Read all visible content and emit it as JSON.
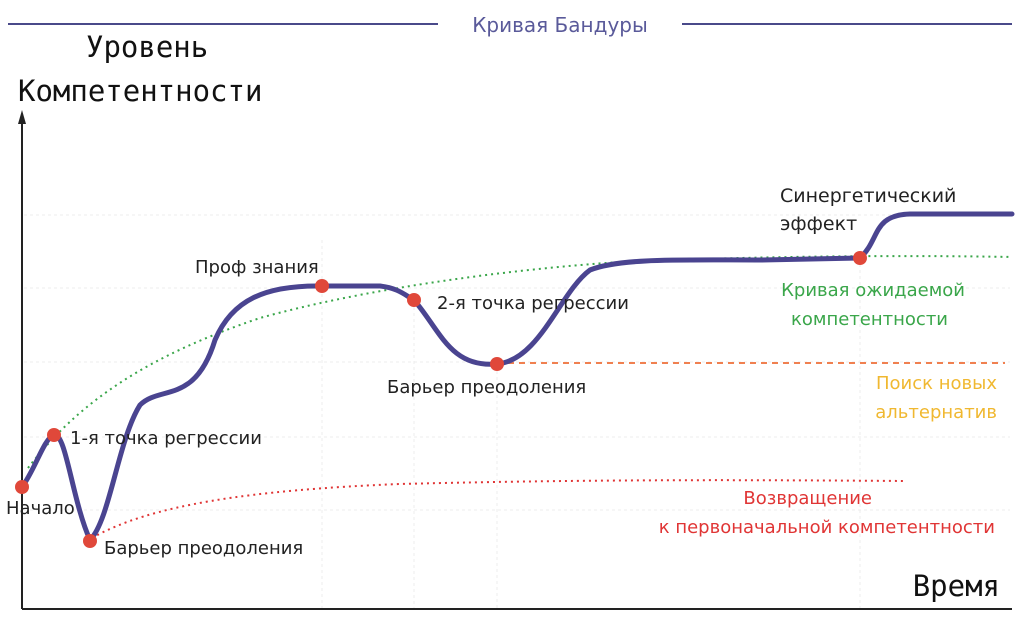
{
  "header": {
    "title": "Кривая Бандуры",
    "title_color": "#5a5a9a",
    "rule_color": "#4a4a8a"
  },
  "axes": {
    "y_label_line1": "Уровень",
    "y_label_line2": "Компетентности",
    "x_label": "Время"
  },
  "annotations": {
    "start": "Начало",
    "regression1": "1-я точка регрессии",
    "barrier1": "Барьер преодоления",
    "prof": "Проф знания",
    "regression2": "2-я точка регрессии",
    "barrier2": "Барьер преодоления",
    "synergy_line1": "Синергетический",
    "synergy_line2": "эффект"
  },
  "legend": {
    "expected_line1": "Кривая ожидаемой",
    "expected_line2": "компетентности",
    "search_line1": "Поиск новых",
    "search_line2": "альтернатив",
    "return_line1": "Возвращение",
    "return_line2": "к первоначальной компетентности"
  },
  "colors": {
    "curve": "#4a4490",
    "point": "#e0483a",
    "expected": "#3aa64a",
    "search": "#f08050",
    "search_text": "#f0b830",
    "return": "#e03535",
    "axis": "#222222",
    "grid": "#e6e6e6"
  }
}
